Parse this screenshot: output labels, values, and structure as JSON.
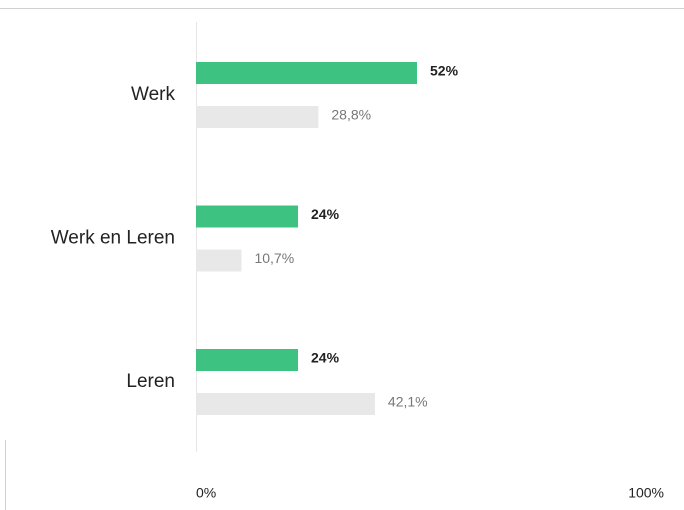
{
  "chart_data": {
    "type": "bar",
    "orientation": "horizontal",
    "categories": [
      "Werk",
      "Werk en Leren",
      "Leren"
    ],
    "series": [
      {
        "color": "#3ec281",
        "values": [
          52,
          24,
          24
        ],
        "value_labels": [
          "52%",
          "24%",
          "24%"
        ]
      },
      {
        "color": "#e8e8e8",
        "values": [
          28.8,
          10.7,
          42.1
        ],
        "value_labels": [
          "28,8%",
          "10,7%",
          "42,1%"
        ]
      }
    ],
    "xlim": [
      0,
      100
    ],
    "xticks": [
      {
        "value": 0,
        "label": "0%"
      },
      {
        "value": 100,
        "label": "100%"
      }
    ]
  }
}
